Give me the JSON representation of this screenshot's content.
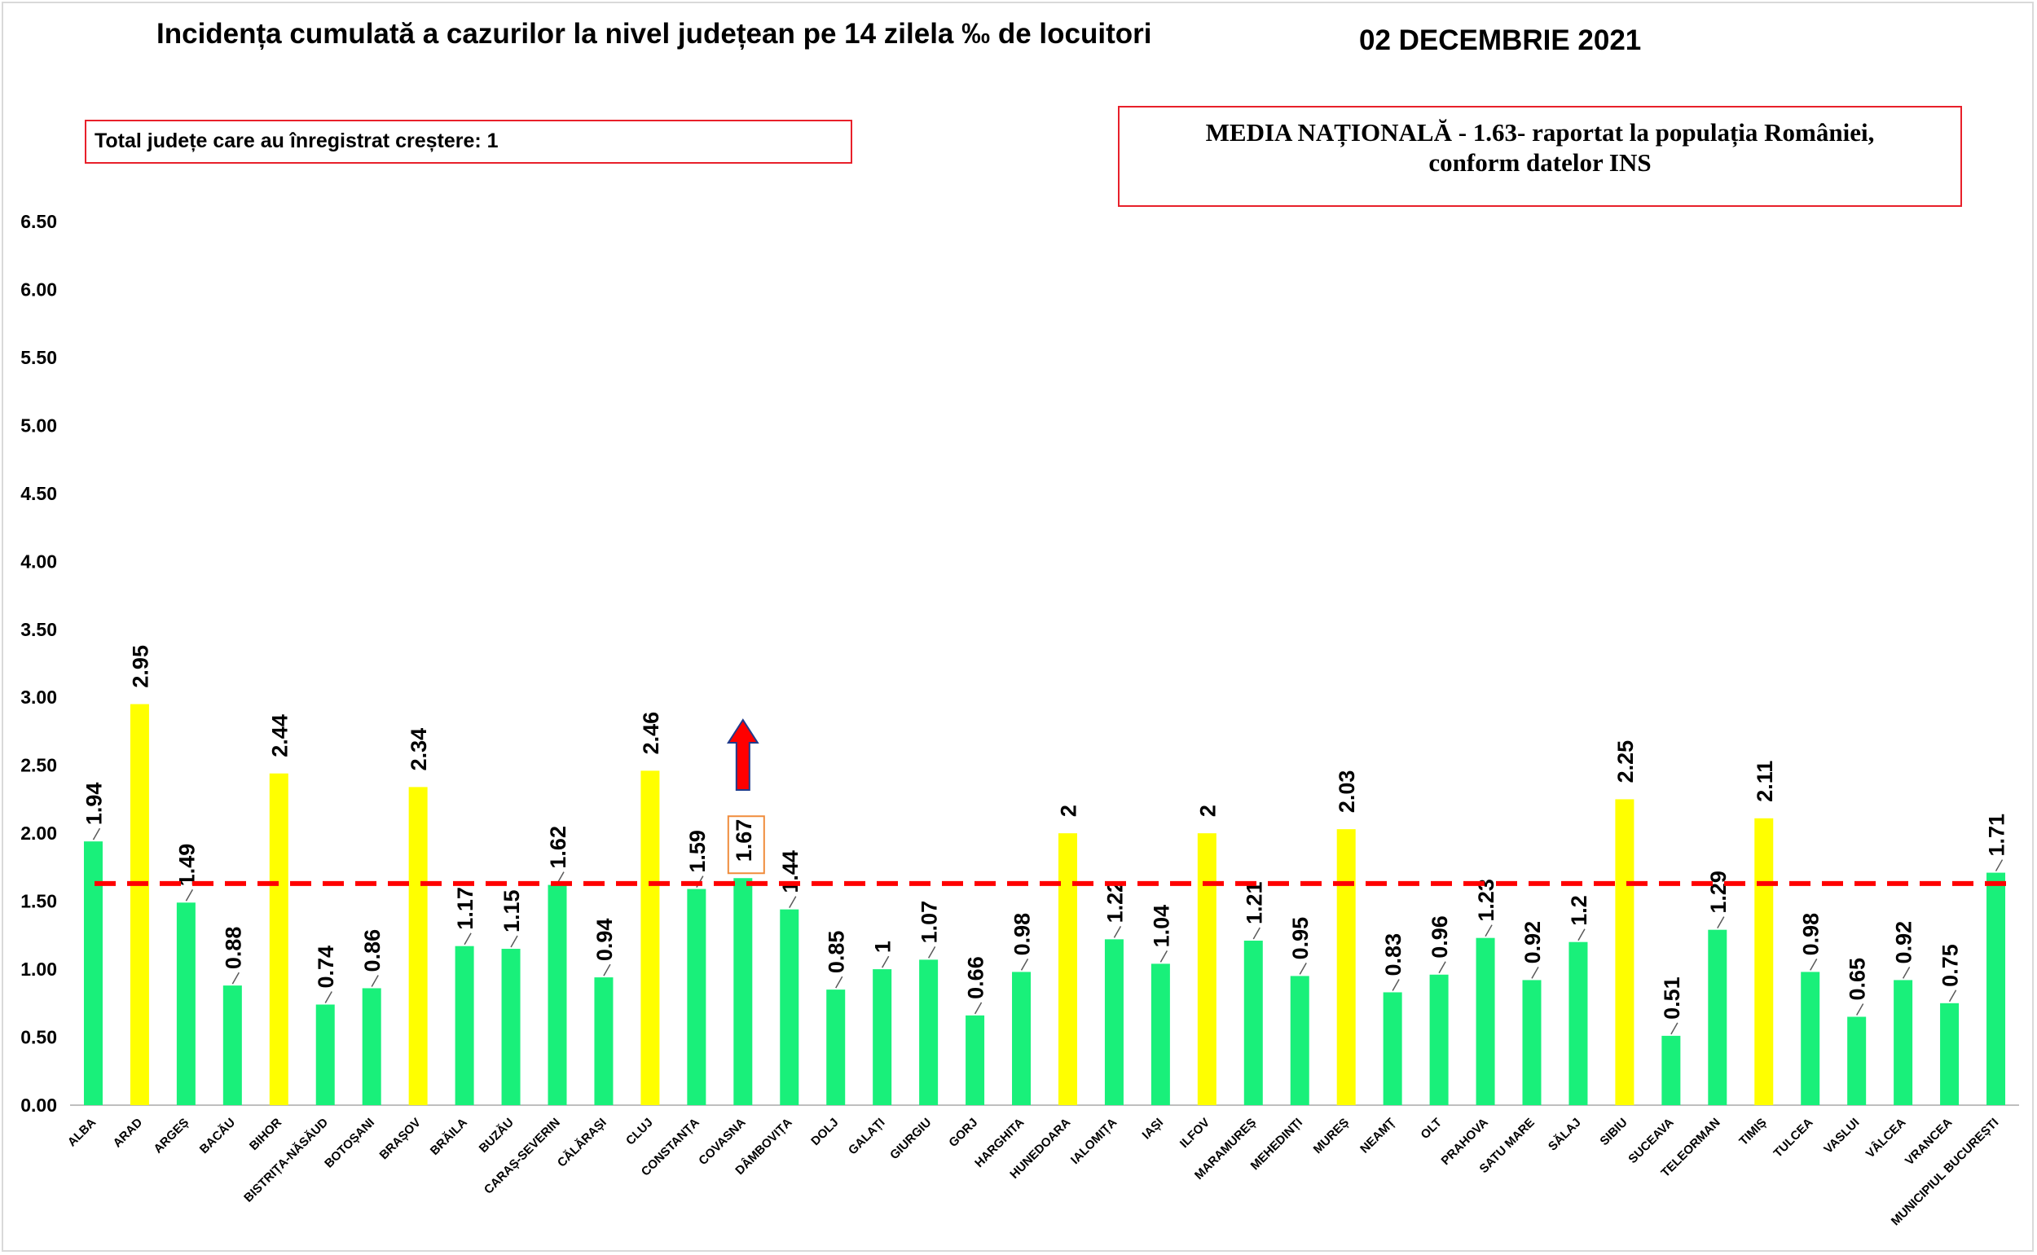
{
  "chart_data": {
    "type": "bar",
    "title": "Incidența cumulată a cazurilor la nivel județean pe 14 zilela ‰ de locuitori",
    "date": "02 DECEMBRIE 2021",
    "ylim": [
      0,
      6.5
    ],
    "yticks": [
      "0.00",
      "0.50",
      "1.00",
      "1.50",
      "2.00",
      "2.50",
      "3.00",
      "3.50",
      "4.00",
      "4.50",
      "5.00",
      "5.50",
      "6.00",
      "6.50"
    ],
    "reference_line": 1.63,
    "colors": {
      "normal": "#19f07a",
      "above": "#ffff00",
      "reference": "#ff0000",
      "arrow": "#ff0000",
      "arrow_outline": "#1f3b8c",
      "highlight_box": "#f08c3c"
    },
    "categories": [
      "ALBA",
      "ARAD",
      "ARGEȘ",
      "BACĂU",
      "BIHOR",
      "BISTRIȚA-NĂSĂUD",
      "BOTOȘANI",
      "BRAȘOV",
      "BRĂILA",
      "BUZĂU",
      "CARAȘ-SEVERIN",
      "CĂLĂRAȘI",
      "CLUJ",
      "CONSTANȚA",
      "COVASNA",
      "DÂMBOVIȚA",
      "DOLJ",
      "GALAȚI",
      "GIURGIU",
      "GORJ",
      "HARGHITA",
      "HUNEDOARA",
      "IALOMIȚA",
      "IAȘI",
      "ILFOV",
      "MARAMUREȘ",
      "MEHEDINȚI",
      "MUREȘ",
      "NEAMȚ",
      "OLT",
      "PRAHOVA",
      "SATU MARE",
      "SĂLAJ",
      "SIBIU",
      "SUCEAVA",
      "TELEORMAN",
      "TIMIȘ",
      "TULCEA",
      "VASLUI",
      "VÂLCEA",
      "VRANCEA",
      "MUNICIPIUL BUCUREȘTI"
    ],
    "values": [
      1.94,
      2.95,
      1.49,
      0.88,
      2.44,
      0.74,
      0.86,
      2.34,
      1.17,
      1.15,
      1.62,
      0.94,
      2.46,
      1.59,
      1.67,
      1.44,
      0.85,
      1,
      1.07,
      0.66,
      0.98,
      2,
      1.22,
      1.04,
      2,
      1.21,
      0.95,
      2.03,
      0.83,
      0.96,
      1.23,
      0.92,
      1.2,
      2.25,
      0.51,
      1.29,
      2.11,
      0.98,
      0.65,
      0.92,
      0.75,
      1.71
    ],
    "labels": [
      "1.94",
      "2.95",
      "1.49",
      "0.88",
      "2.44",
      "0.74",
      "0.86",
      "2.34",
      "1.17",
      "1.15",
      "1.62",
      "0.94",
      "2.46",
      "1.59",
      "1.67",
      "1.44",
      "0.85",
      "1",
      "1.07",
      "0.66",
      "0.98",
      "2",
      "1.22",
      "1.04",
      "2",
      "1.21",
      "0.95",
      "2.03",
      "0.83",
      "0.96",
      "1.23",
      "0.92",
      "1.2",
      "2.25",
      "0.51",
      "1.29",
      "2.11",
      "0.98",
      "0.65",
      "0.92",
      "0.75",
      "1.71"
    ],
    "yellow_categories": [
      "ARAD",
      "BIHOR",
      "BRAȘOV",
      "CLUJ",
      "HUNEDOARA",
      "ILFOV",
      "MUREȘ",
      "SIBIU",
      "TIMIȘ"
    ],
    "increase_category": "COVASNA"
  },
  "info": {
    "total_increase_label": "Total județe care au înregistrat creștere: 1",
    "media_line1": "MEDIA NAȚIONALĂ  - 1.63-  raportat la populația României,",
    "media_line2": "conform datelor INS"
  }
}
